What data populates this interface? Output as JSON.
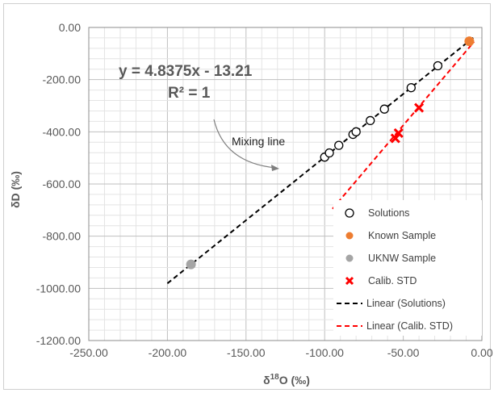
{
  "chart_data": {
    "type": "scatter",
    "xlabel_main": "δ",
    "xlabel_sup": "18",
    "xlabel_rest": "O (‰)",
    "ylabel": "δD (‰)",
    "xlim": [
      -250,
      0
    ],
    "ylim": [
      -1200,
      0
    ],
    "x_ticks": [
      "-250.00",
      "-200.00",
      "-150.00",
      "-100.00",
      "-50.00",
      "0.00"
    ],
    "y_ticks": [
      "0.00",
      "-200.00",
      "-400.00",
      "-600.00",
      "-800.00",
      "-1000.00",
      "-1200.00"
    ],
    "grid": true,
    "equation": "y = 4.8375x - 13.21",
    "r_squared": "R² = 1",
    "annotation": "Mixing line",
    "series": [
      {
        "name": "Solutions",
        "kind": "points",
        "marker": "open-circle",
        "color": "#000000",
        "points": [
          {
            "x": -100,
            "y": -497
          },
          {
            "x": -97,
            "y": -481
          },
          {
            "x": -91,
            "y": -452
          },
          {
            "x": -82,
            "y": -410
          },
          {
            "x": -80,
            "y": -400
          },
          {
            "x": -71,
            "y": -357
          },
          {
            "x": -62,
            "y": -313
          },
          {
            "x": -45,
            "y": -231
          },
          {
            "x": -28,
            "y": -147
          }
        ]
      },
      {
        "name": "Known Sample",
        "kind": "points",
        "marker": "filled-circle",
        "color": "#ed7d31",
        "points": [
          {
            "x": -8,
            "y": -53
          }
        ]
      },
      {
        "name": "UKNW Sample",
        "kind": "points",
        "marker": "filled-circle",
        "color": "#a5a5a5",
        "points": [
          {
            "x": -185,
            "y": -908
          }
        ]
      },
      {
        "name": "Calib. STD",
        "kind": "points",
        "marker": "x",
        "color": "#ff0000",
        "points": [
          {
            "x": -40,
            "y": -308
          },
          {
            "x": -53,
            "y": -405
          },
          {
            "x": -55,
            "y": -425
          }
        ]
      },
      {
        "name": "Linear (Solutions)",
        "kind": "line",
        "dash": "dash",
        "color": "#000000",
        "points": [
          {
            "x": -200,
            "y": -981
          },
          {
            "x": -5,
            "y": -37
          }
        ]
      },
      {
        "name": "Linear (Calib. STD)",
        "kind": "line",
        "dash": "dash",
        "color": "#ff0000",
        "points": [
          {
            "x": -95,
            "y": -695
          },
          {
            "x": -5,
            "y": -55
          }
        ]
      }
    ]
  }
}
